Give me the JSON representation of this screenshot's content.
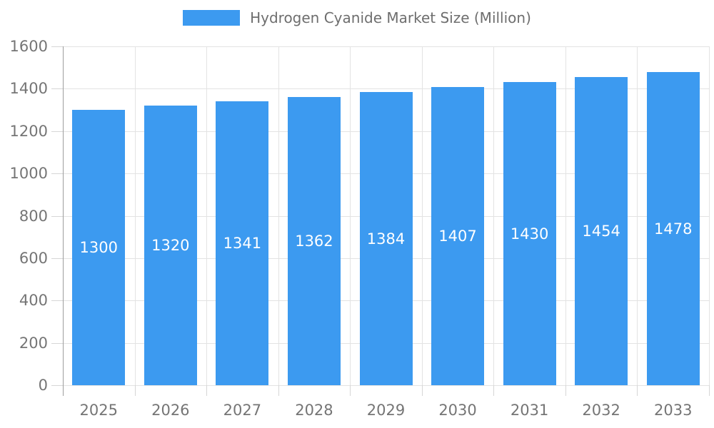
{
  "chart_data": {
    "type": "bar",
    "title": "Hydrogen Cyanide Market Size (Million)",
    "categories": [
      "2025",
      "2026",
      "2027",
      "2028",
      "2029",
      "2030",
      "2031",
      "2032",
      "2033"
    ],
    "values": [
      1300,
      1320,
      1341,
      1362,
      1384,
      1407,
      1430,
      1454,
      1478
    ],
    "bar_value_labels": [
      "1300",
      "1320",
      "1341",
      "1362",
      "1384",
      "1407",
      "1430",
      "1454",
      "1478"
    ],
    "xlabel": "",
    "ylabel": "",
    "ylim": [
      0,
      1600
    ],
    "ytick_step": 200,
    "ytick_labels": [
      "0",
      "200",
      "400",
      "600",
      "800",
      "1000",
      "1200",
      "1400",
      "1600"
    ],
    "grid": "on",
    "legend_position": "top-center",
    "colors": {
      "bar": "#3C9AF0",
      "grid": "#e3e3e3",
      "tick": "#d6d6d6",
      "axis_line": "#9e9e9e",
      "axis_label": "#757575",
      "legend_label": "#6e6e6e",
      "bar_label": "#ffffff",
      "background": "#ffffff"
    }
  }
}
